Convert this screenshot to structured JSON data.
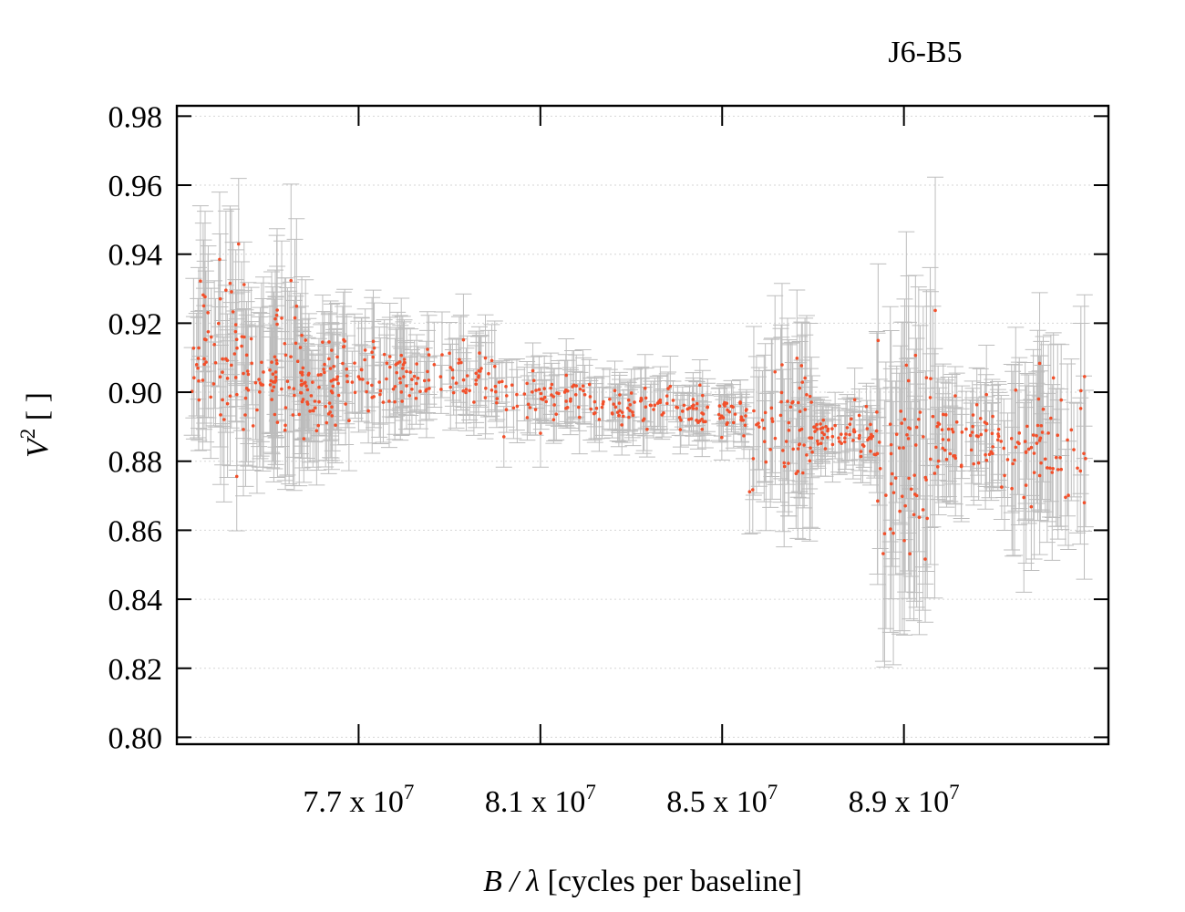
{
  "chart_data": {
    "type": "scatter",
    "title": "J6-B5",
    "xlabel": {
      "var": "B / λ",
      "text": " [cycles per baseline]"
    },
    "ylabel": {
      "var": "V",
      "sup": "2",
      "text": " [ ]"
    },
    "xlim": [
      73000000,
      93500000
    ],
    "ylim": [
      0.798,
      0.983
    ],
    "xticks": [
      {
        "value": 77000000,
        "mant": "7.7 x 10",
        "exp": "7"
      },
      {
        "value": 81000000,
        "mant": "8.1 x 10",
        "exp": "7"
      },
      {
        "value": 85000000,
        "mant": "8.5 x 10",
        "exp": "7"
      },
      {
        "value": 89000000,
        "mant": "8.9 x 10",
        "exp": "7"
      }
    ],
    "yticks": [
      {
        "value": 0.8,
        "label": "0.80"
      },
      {
        "value": 0.82,
        "label": "0.82"
      },
      {
        "value": 0.84,
        "label": "0.84"
      },
      {
        "value": 0.86,
        "label": "0.86"
      },
      {
        "value": 0.88,
        "label": "0.88"
      },
      {
        "value": 0.9,
        "label": "0.90"
      },
      {
        "value": 0.92,
        "label": "0.92"
      },
      {
        "value": 0.94,
        "label": "0.94"
      },
      {
        "value": 0.96,
        "label": "0.96"
      },
      {
        "value": 0.98,
        "label": "0.98"
      }
    ],
    "grid": "horizontal dotted",
    "colors": {
      "points": "#f24f2a",
      "errorbars": "#bdbdbd",
      "grid": "#d6d6d6",
      "frame": "#000000"
    },
    "series": [
      {
        "x_range": [
          73300000,
          93000000
        ],
        "points_per_segment": 60,
        "segments": [
          {
            "x": [
              73300000,
              74500000
            ],
            "mean": 0.912,
            "spread": 0.022,
            "err": 0.018
          },
          {
            "x": [
              74500000,
              75700000
            ],
            "mean": 0.904,
            "spread": 0.02,
            "err": 0.02
          },
          {
            "x": [
              75700000,
              76500000
            ],
            "mean": 0.902,
            "spread": 0.013,
            "err": 0.014
          },
          {
            "x": [
              76500000,
              78000000
            ],
            "mean": 0.905,
            "spread": 0.009,
            "err": 0.012
          },
          {
            "x": [
              78000000,
              80000000
            ],
            "mean": 0.905,
            "spread": 0.007,
            "err": 0.01
          },
          {
            "x": [
              80000000,
              82000000
            ],
            "mean": 0.899,
            "spread": 0.006,
            "err": 0.008
          },
          {
            "x": [
              82000000,
              84000000
            ],
            "mean": 0.896,
            "spread": 0.005,
            "err": 0.007
          },
          {
            "x": [
              84000000,
              85600000
            ],
            "mean": 0.894,
            "spread": 0.005,
            "err": 0.006
          },
          {
            "x": [
              85600000,
              87000000
            ],
            "mean": 0.889,
            "spread": 0.016,
            "err": 0.018
          },
          {
            "x": [
              87000000,
              88400000
            ],
            "mean": 0.888,
            "spread": 0.006,
            "err": 0.008
          },
          {
            "x": [
              88400000,
              89700000
            ],
            "mean": 0.882,
            "spread": 0.03,
            "err": 0.028
          },
          {
            "x": [
              89700000,
              91300000
            ],
            "mean": 0.885,
            "spread": 0.011,
            "err": 0.012
          },
          {
            "x": [
              91300000,
              93000000
            ],
            "mean": 0.887,
            "spread": 0.017,
            "err": 0.02
          }
        ]
      }
    ]
  }
}
